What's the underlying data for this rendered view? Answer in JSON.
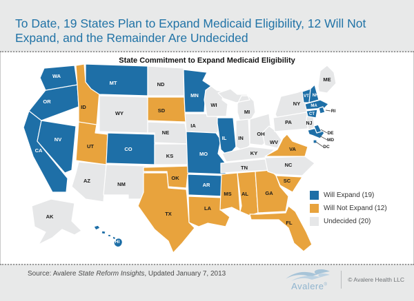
{
  "header": {
    "title": "To Date, 19 States Plan to Expand Medicaid Eligibility, 12 Will Not Expand, and the Remainder Are Undecided"
  },
  "chart_title": "State Commitment to Expand Medicaid Eligibility",
  "colors": {
    "expand": "#1e6fa7",
    "not_expand": "#e8a33d",
    "undecided": "#e6e7e8",
    "title_blue": "#2173a6",
    "label_on_expand": "#ffffff",
    "label_on_other": "#1a1a1a"
  },
  "legend": [
    {
      "label": "Will Expand (19)",
      "status": "expand"
    },
    {
      "label": "Will Not Expand (12)",
      "status": "not_expand"
    },
    {
      "label": "Undecided (20)",
      "status": "undecided"
    }
  ],
  "chart_data": {
    "type": "heatmap",
    "subtype": "us-state-choropleth",
    "title": "State Commitment to Expand Medicaid Eligibility",
    "legend_position": "right",
    "series": [
      {
        "name": "Will Expand",
        "count": 19,
        "states": [
          "WA",
          "OR",
          "CA",
          "NV",
          "MT",
          "CO",
          "MN",
          "MO",
          "IL",
          "AR",
          "HI",
          "VT",
          "NH",
          "MA",
          "CT",
          "RI",
          "DE",
          "MD",
          "DC"
        ]
      },
      {
        "name": "Will Not Expand",
        "count": 12,
        "states": [
          "ID",
          "UT",
          "SD",
          "OK",
          "TX",
          "LA",
          "MS",
          "AL",
          "GA",
          "FL",
          "SC",
          "VA"
        ]
      },
      {
        "name": "Undecided",
        "count": 20,
        "states": [
          "AK",
          "AZ",
          "NM",
          "WY",
          "ND",
          "NE",
          "KS",
          "IA",
          "WI",
          "MI",
          "IN",
          "OH",
          "KY",
          "TN",
          "WV",
          "NC",
          "NY",
          "PA",
          "NJ",
          "ME"
        ]
      }
    ]
  },
  "map": {
    "states": [
      {
        "abbr": "WA",
        "status": "expand"
      },
      {
        "abbr": "OR",
        "status": "expand"
      },
      {
        "abbr": "CA",
        "status": "expand"
      },
      {
        "abbr": "NV",
        "status": "expand"
      },
      {
        "abbr": "ID",
        "status": "not_expand"
      },
      {
        "abbr": "MT",
        "status": "expand"
      },
      {
        "abbr": "WY",
        "status": "undecided"
      },
      {
        "abbr": "UT",
        "status": "not_expand"
      },
      {
        "abbr": "CO",
        "status": "expand"
      },
      {
        "abbr": "AZ",
        "status": "undecided"
      },
      {
        "abbr": "NM",
        "status": "undecided"
      },
      {
        "abbr": "ND",
        "status": "undecided"
      },
      {
        "abbr": "SD",
        "status": "not_expand"
      },
      {
        "abbr": "NE",
        "status": "undecided"
      },
      {
        "abbr": "KS",
        "status": "undecided"
      },
      {
        "abbr": "OK",
        "status": "not_expand"
      },
      {
        "abbr": "TX",
        "status": "not_expand"
      },
      {
        "abbr": "MN",
        "status": "expand"
      },
      {
        "abbr": "IA",
        "status": "undecided"
      },
      {
        "abbr": "MO",
        "status": "expand"
      },
      {
        "abbr": "AR",
        "status": "expand"
      },
      {
        "abbr": "LA",
        "status": "not_expand"
      },
      {
        "abbr": "WI",
        "status": "undecided"
      },
      {
        "abbr": "IL",
        "status": "expand"
      },
      {
        "abbr": "MI",
        "status": "undecided"
      },
      {
        "abbr": "IN",
        "status": "undecided"
      },
      {
        "abbr": "OH",
        "status": "undecided"
      },
      {
        "abbr": "KY",
        "status": "undecided"
      },
      {
        "abbr": "TN",
        "status": "undecided"
      },
      {
        "abbr": "WV",
        "status": "undecided"
      },
      {
        "abbr": "MS",
        "status": "not_expand"
      },
      {
        "abbr": "AL",
        "status": "not_expand"
      },
      {
        "abbr": "GA",
        "status": "not_expand"
      },
      {
        "abbr": "FL",
        "status": "not_expand"
      },
      {
        "abbr": "SC",
        "status": "not_expand"
      },
      {
        "abbr": "NC",
        "status": "undecided"
      },
      {
        "abbr": "VA",
        "status": "not_expand"
      },
      {
        "abbr": "NY",
        "status": "undecided"
      },
      {
        "abbr": "PA",
        "status": "undecided"
      },
      {
        "abbr": "NJ",
        "status": "undecided"
      },
      {
        "abbr": "ME",
        "status": "undecided"
      },
      {
        "abbr": "VT",
        "status": "expand"
      },
      {
        "abbr": "NH",
        "status": "expand"
      },
      {
        "abbr": "MA",
        "status": "expand"
      },
      {
        "abbr": "CT",
        "status": "expand"
      },
      {
        "abbr": "RI",
        "status": "expand"
      },
      {
        "abbr": "MD",
        "status": "expand"
      },
      {
        "abbr": "DE",
        "status": "expand"
      },
      {
        "abbr": "DC",
        "status": "expand"
      },
      {
        "abbr": "AK",
        "status": "undecided"
      },
      {
        "abbr": "HI",
        "status": "expand"
      }
    ]
  },
  "footer": {
    "source_prefix": "Source: Avalere ",
    "source_italic": "State Reform Insights",
    "source_suffix": ", Updated January 7, 2013",
    "logo_text": "Avalere",
    "logo_reg": "®",
    "copyright": "© Avalere Health LLC"
  }
}
